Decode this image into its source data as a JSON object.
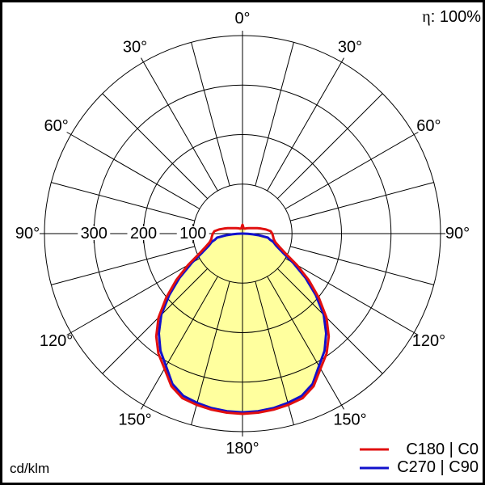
{
  "header": {
    "eta_symbol": "η",
    "eta_value": ": 100%",
    "eta_full": "η: 100%"
  },
  "footer": {
    "unit": "cd/klm"
  },
  "legend": [
    {
      "label": "C180 | C0",
      "color": "#e11010"
    },
    {
      "label": "C270 | C90",
      "color": "#1111cc"
    }
  ],
  "colors": {
    "grid": "#000000",
    "fill": "#ffff9e",
    "background": "#ffffff",
    "frame": "#000000",
    "c0_c180": "#e11010",
    "c90_c270": "#1111cc"
  },
  "chart_data": {
    "type": "line",
    "polar": true,
    "orientation": "0° at bottom (nadir), 180° at top, angles mirrored left/right",
    "unit": "cd/klm",
    "efficiency_label": "η: 100%",
    "radial_circles": [
      100,
      200,
      300,
      400
    ],
    "radial_axis_labels": [
      {
        "value": 300,
        "label": "300"
      },
      {
        "value": 200,
        "label": "200"
      },
      {
        "value": 100,
        "label": "100"
      }
    ],
    "rmax": 400,
    "spoke_step_deg": 15,
    "angle_labels": [
      {
        "angle": 180,
        "side": 0,
        "label": "180°"
      },
      {
        "angle": 150,
        "side": -1,
        "label": "150°"
      },
      {
        "angle": 150,
        "side": 1,
        "label": "150°"
      },
      {
        "angle": 120,
        "side": -1,
        "label": "120°"
      },
      {
        "angle": 120,
        "side": 1,
        "label": "120°"
      },
      {
        "angle": 90,
        "side": -1,
        "label": "90°"
      },
      {
        "angle": 90,
        "side": 1,
        "label": "90°"
      },
      {
        "angle": 60,
        "side": -1,
        "label": "60°"
      },
      {
        "angle": 60,
        "side": 1,
        "label": "60°"
      },
      {
        "angle": 30,
        "side": -1,
        "label": "30°"
      },
      {
        "angle": 30,
        "side": 1,
        "label": "30°"
      },
      {
        "angle": 0,
        "side": 0,
        "label": "0°"
      }
    ],
    "series": [
      {
        "name": "C180 | C0",
        "color": "#e11010",
        "symmetric": true,
        "points_gamma_intensity": [
          [
            0,
            364
          ],
          [
            5,
            363
          ],
          [
            10,
            361
          ],
          [
            15,
            358
          ],
          [
            20,
            354
          ],
          [
            25,
            340
          ],
          [
            30,
            315
          ],
          [
            35,
            296
          ],
          [
            40,
            271
          ],
          [
            45,
            240
          ],
          [
            50,
            201
          ],
          [
            55,
            163
          ],
          [
            60,
            127
          ],
          [
            65,
            97
          ],
          [
            70,
            80
          ],
          [
            75,
            69
          ],
          [
            80,
            64
          ],
          [
            85,
            62
          ],
          [
            90,
            60
          ],
          [
            95,
            57
          ],
          [
            100,
            48
          ],
          [
            105,
            39
          ],
          [
            110,
            32
          ],
          [
            115,
            26
          ],
          [
            120,
            22
          ],
          [
            130,
            17
          ],
          [
            140,
            14
          ],
          [
            150,
            12
          ],
          [
            160,
            11
          ],
          [
            168,
            11
          ],
          [
            173,
            13
          ],
          [
            177,
            16
          ],
          [
            180,
            18
          ]
        ]
      },
      {
        "name": "C270 | C90",
        "color": "#1111cc",
        "symmetric": true,
        "points_gamma_intensity": [
          [
            0,
            361
          ],
          [
            5,
            360
          ],
          [
            10,
            358
          ],
          [
            15,
            354
          ],
          [
            20,
            349
          ],
          [
            25,
            335
          ],
          [
            30,
            309
          ],
          [
            35,
            289
          ],
          [
            40,
            263
          ],
          [
            45,
            232
          ],
          [
            50,
            193
          ],
          [
            55,
            155
          ],
          [
            60,
            118
          ],
          [
            65,
            89
          ],
          [
            70,
            73
          ],
          [
            75,
            64
          ],
          [
            78,
            56
          ],
          [
            81,
            52
          ],
          [
            84,
            34
          ],
          [
            86,
            21
          ],
          [
            88,
            11
          ],
          [
            90,
            2
          ]
        ]
      }
    ],
    "fill": {
      "color": "#ffff9e",
      "follows": "C270|C90 curve for γ ≤ 90°, C180|C0 curve above 140°"
    }
  }
}
